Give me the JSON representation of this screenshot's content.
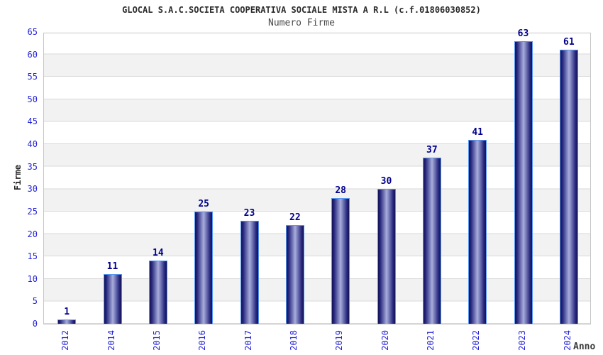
{
  "header": {
    "title": "GLOCAL S.A.C.SOCIETA COOPERATIVA SOCIALE MISTA A R.L (c.f.01806030852)",
    "subtitle": "Numero Firme"
  },
  "chart_data": {
    "type": "bar",
    "title": "GLOCAL S.A.C.SOCIETA COOPERATIVA SOCIALE MISTA A R.L (c.f.01806030852)",
    "subtitle": "Numero Firme",
    "categories": [
      "2012",
      "2014",
      "2015",
      "2016",
      "2017",
      "2018",
      "2019",
      "2020",
      "2021",
      "2022",
      "2023",
      "2024"
    ],
    "values": [
      1,
      11,
      14,
      25,
      23,
      22,
      28,
      30,
      37,
      41,
      63,
      61
    ],
    "xlabel": "Anno",
    "ylabel": "Firme",
    "ylim": [
      0,
      65
    ],
    "ytick_step": 5,
    "grid": "horizontal alternating bands every 5 units",
    "legend": "none",
    "colors": {
      "bar_dark": "#131354",
      "bar_mid": "#26267e",
      "bar_light": "#a8addc",
      "bar_border": "#5596f2",
      "value_label": "#00008c",
      "tick_label": "#2424d9",
      "band_gray": "#f2f2f2",
      "gridline": "#d9d9d9",
      "plot_border": "#c6c6c6",
      "title_color": "#2b2b2b"
    }
  }
}
